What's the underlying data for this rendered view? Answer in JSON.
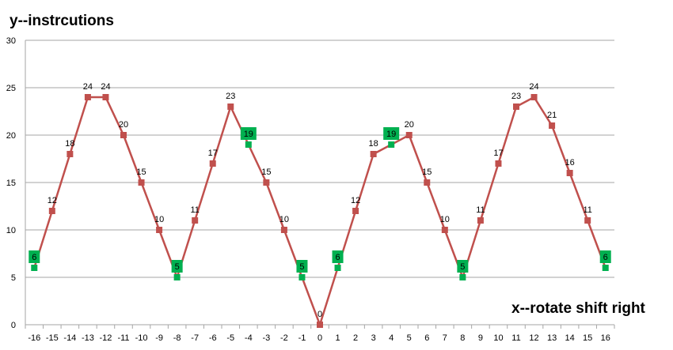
{
  "chart_data": {
    "type": "line",
    "title": "",
    "ylabel": "y--instrcutions",
    "xlabel": "x--rotate shift right",
    "ylim": [
      0,
      30
    ],
    "yticks": [
      0,
      5,
      10,
      15,
      20,
      25,
      30
    ],
    "grid": true,
    "legend": "none",
    "x": [
      -16,
      -15,
      -14,
      -13,
      -12,
      -11,
      -10,
      -9,
      -8,
      -7,
      -6,
      -5,
      -4,
      -3,
      -2,
      -1,
      0,
      1,
      2,
      3,
      4,
      5,
      6,
      7,
      8,
      9,
      10,
      11,
      12,
      13,
      14,
      15,
      16
    ],
    "series": [
      {
        "color": "#c0504d",
        "values": [
          6,
          12,
          18,
          24,
          24,
          20,
          15,
          10,
          5,
          11,
          17,
          23,
          19,
          15,
          10,
          5,
          0,
          6,
          12,
          18,
          19,
          20,
          15,
          10,
          5,
          11,
          17,
          23,
          24,
          21,
          16,
          11,
          6
        ]
      }
    ],
    "highlighted_x": [
      -16,
      -8,
      -4,
      -1,
      1,
      4,
      8,
      16
    ],
    "highlight_color": "#00b050",
    "line_color": "#c0504d",
    "grid_color": "#a6a6a6"
  }
}
